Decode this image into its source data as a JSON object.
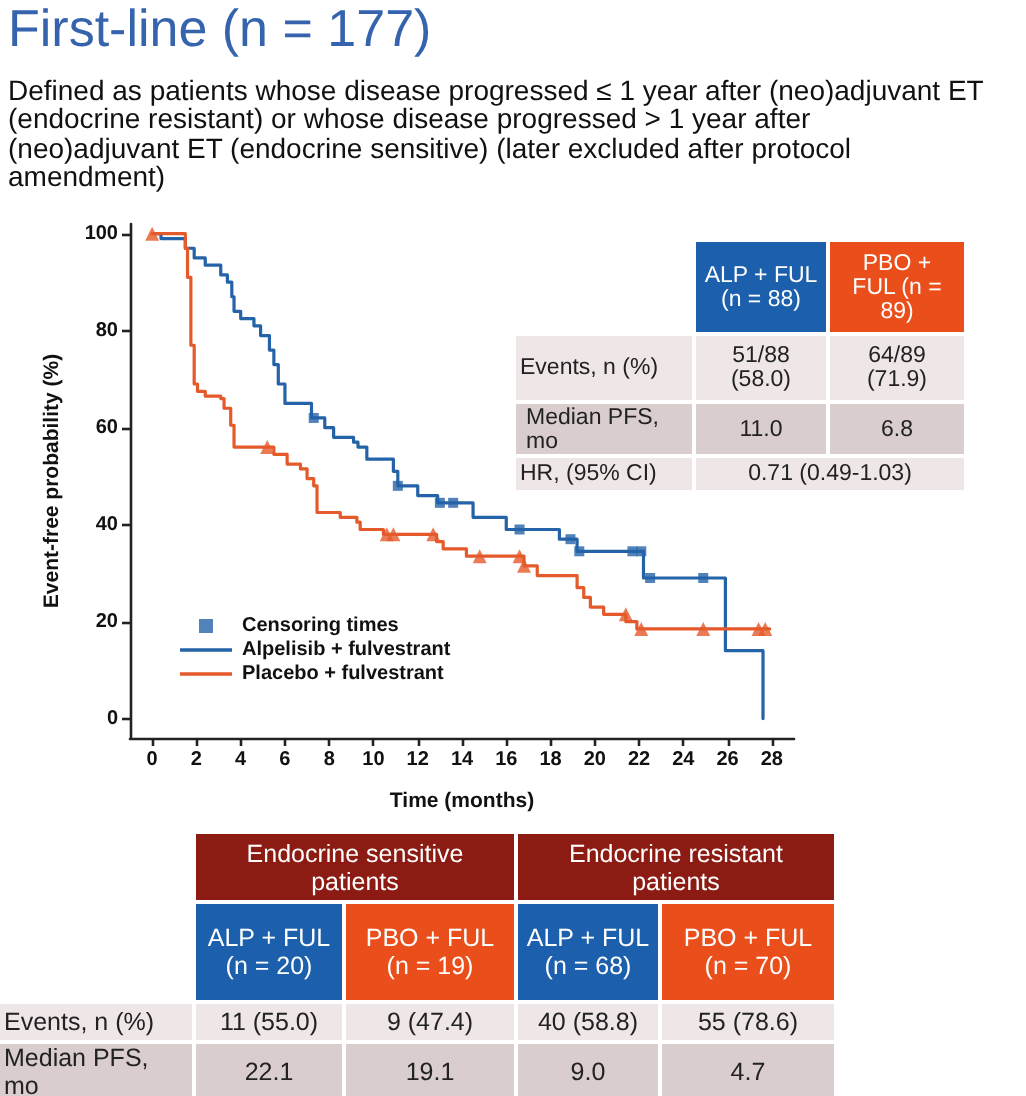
{
  "chart_data": {
    "type": "step",
    "title": "First-line (n = 177)",
    "subtitle": "Defined as patients whose disease progressed ≤ 1 year after (neo)adjuvant ET (endocrine resistant) or whose disease progressed > 1 year after (neo)adjuvant ET (endocrine sensitive) (later excluded after protocol amendment)",
    "xlabel": "Time (months)",
    "ylabel": "Event-free probability (%)",
    "xlim": [
      -1,
      29
    ],
    "xticks": [
      0,
      2,
      4,
      6,
      8,
      10,
      12,
      14,
      16,
      18,
      20,
      22,
      24,
      26,
      28
    ],
    "ylim": [
      -4,
      102
    ],
    "yticks": [
      0,
      20,
      40,
      60,
      80,
      100
    ],
    "legend": "bottom left",
    "series": [
      {
        "name": "Censoring times",
        "type": "scatter",
        "marker": "square",
        "color": "#2563a8",
        "x": [
          7.3,
          11.1,
          13.0,
          13.6,
          16.6,
          18.9,
          19.3,
          21.7,
          22.1,
          22.5,
          24.9
        ],
        "values": [
          62,
          48,
          44.5,
          44.5,
          39,
          37,
          34.5,
          34.5,
          34.5,
          29,
          29
        ]
      },
      {
        "type": "scatter",
        "marker": "triangle",
        "color": "#e55a2b",
        "x": [
          0,
          5.2,
          10.6,
          10.9,
          12.7,
          14.8,
          16.6,
          16.8,
          21.4,
          22.1,
          24.9,
          27.4,
          27.7
        ],
        "values": [
          100,
          56,
          38,
          38,
          38,
          33.5,
          33.5,
          31.5,
          21.5,
          18.5,
          18.5,
          18.5,
          18.5
        ]
      },
      {
        "name": "Alpelisib + fulvestrant",
        "color": "#2563a8",
        "x": [
          0,
          0.4,
          1.5,
          1.9,
          2.4,
          3.1,
          3.4,
          3.6,
          3.7,
          4.0,
          4.6,
          4.9,
          5.3,
          5.5,
          5.7,
          6.0,
          7.2,
          7.8,
          8.2,
          9.1,
          9.3,
          9.7,
          10.9,
          11.1,
          12.0,
          12.9,
          14.5,
          16.0,
          18.4,
          19.2,
          22.2,
          25.9,
          27.6
        ],
        "values": [
          100,
          99,
          97,
          95,
          93.5,
          91.5,
          90,
          87,
          84,
          82.5,
          81,
          79,
          76,
          73,
          69,
          65,
          62,
          60,
          58,
          57,
          56,
          53.5,
          51,
          48,
          46,
          44.5,
          41.5,
          39,
          37,
          34.5,
          29,
          14,
          0
        ]
      },
      {
        "name": "Placebo + fulvestrant",
        "color": "#e55a2b",
        "x": [
          0,
          1.5,
          1.6,
          1.75,
          1.9,
          2.05,
          2.4,
          3.1,
          3.25,
          3.55,
          3.7,
          5.5,
          6.1,
          6.7,
          7.0,
          7.3,
          7.45,
          8.5,
          9.25,
          9.4,
          10.45,
          12.85,
          13.15,
          14.2,
          16.8,
          17.4,
          19.2,
          19.5,
          19.8,
          20.4,
          21.4,
          21.9,
          27.9
        ],
        "values": [
          100,
          97,
          91,
          77,
          69,
          67.5,
          66.5,
          66,
          64,
          60.5,
          56,
          54.5,
          52.5,
          51.5,
          49.5,
          48,
          42.5,
          41.5,
          40.5,
          39,
          38,
          36.5,
          35,
          33.5,
          31.5,
          29.5,
          27,
          25,
          23,
          21.5,
          20,
          18.5,
          18.5
        ]
      }
    ],
    "annotations": [
      "ALP + FUL (n = 88)",
      "PBO + FUL (n = 89)",
      "Events, n (%)",
      "51/88 (58.0)",
      "64/89 (71.9)",
      "Median PFS, mo",
      "11.0",
      "6.8",
      "HR, (95% CI)",
      "0.71 (0.49-1.03)",
      "Endocrine sensitive patients",
      "Endocrine resistant patients",
      "ALP + FUL (n = 20)",
      "PBO + FUL (n = 19)",
      "ALP + FUL (n = 68)",
      "PBO + FUL (n = 70)",
      "Events, n (%)",
      "11 (55.0)",
      "9 (47.4)",
      "40 (58.8)",
      "55 (78.6)",
      "Median PFS, mo",
      "22.1",
      "19.1",
      "9.0",
      "4.7"
    ]
  }
}
